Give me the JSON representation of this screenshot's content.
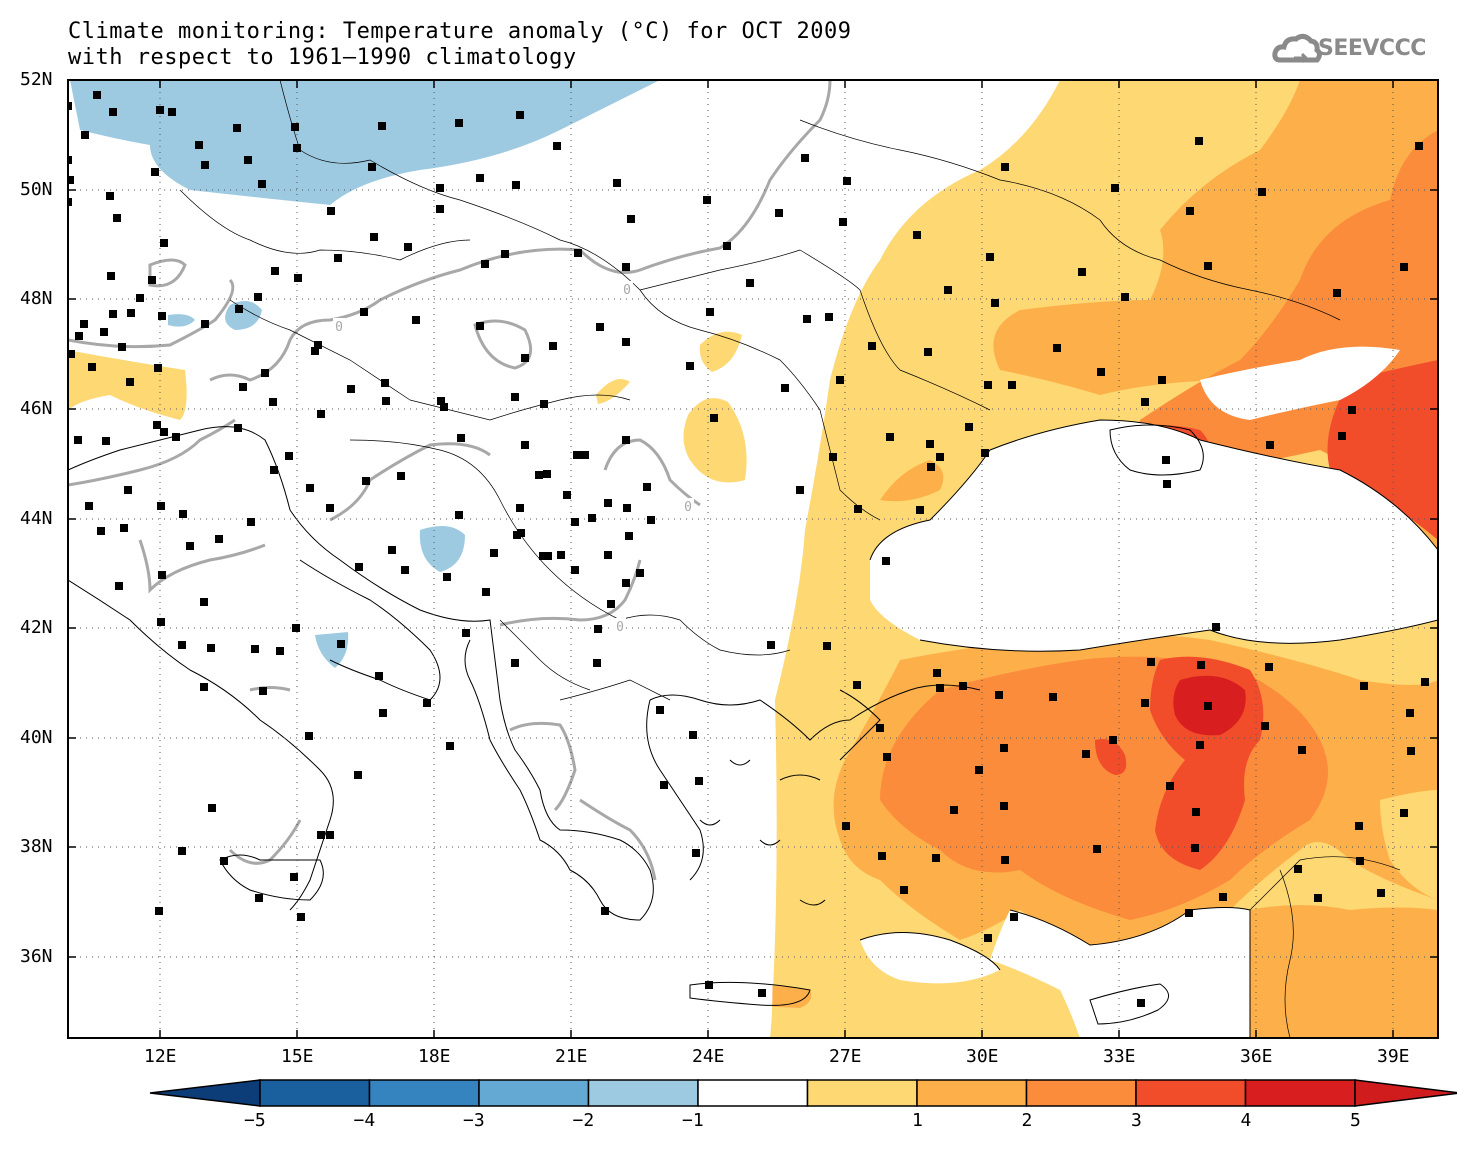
{
  "title": {
    "line1": "Climate monitoring: Temperature anomaly (°C) for OCT 2009",
    "line2": "with respect to 1961–1990 climatology"
  },
  "logo": {
    "text": "SEEVCCC",
    "icon": "cloud-icon"
  },
  "map": {
    "lon_range": [
      9.8,
      40.0
    ],
    "lat_range": [
      34.4,
      52.0
    ],
    "lon_ticks": [
      "12E",
      "15E",
      "18E",
      "21E",
      "24E",
      "27E",
      "30E",
      "33E",
      "36E",
      "39E"
    ],
    "lat_ticks": [
      "52N",
      "50N",
      "48N",
      "46N",
      "44N",
      "42N",
      "40N",
      "38N",
      "36N"
    ],
    "contour_label": "0"
  },
  "colorbar": {
    "ticks": [
      "−5",
      "−4",
      "−3",
      "−2",
      "−1",
      "1",
      "2",
      "3",
      "4",
      "5"
    ],
    "colors": [
      "#1a5f9e",
      "#3584c0",
      "#64a8d4",
      "#9ecae1",
      "#ffffff",
      "#fdd873",
      "#fdb04a",
      "#fb8c3c",
      "#f24d2b",
      "#d81e1e"
    ],
    "under_color": "#0c3d78",
    "over_color": "#d01c1c"
  }
}
